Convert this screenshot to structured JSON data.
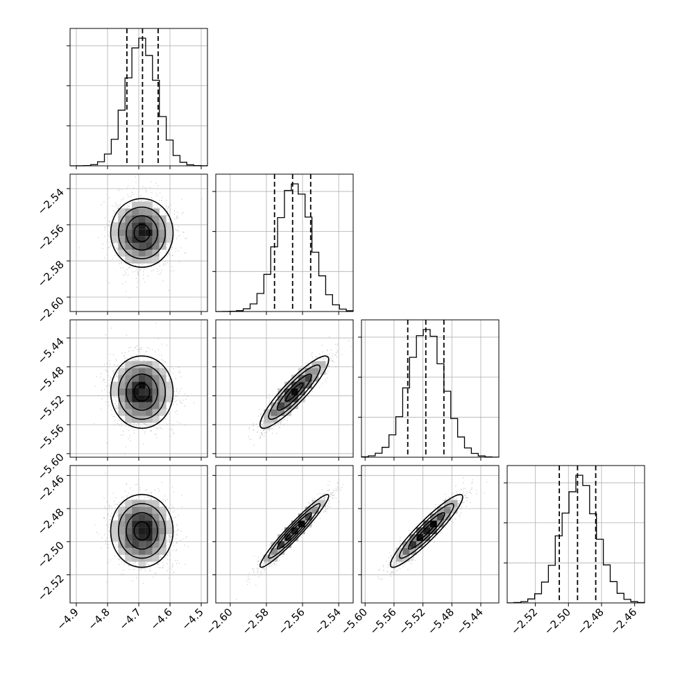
{
  "chart_data": {
    "type": "corner",
    "n_params": 4,
    "params": [
      {
        "mean": -4.69,
        "sigma": 0.05,
        "range": [
          -4.92,
          -4.48
        ],
        "ticks": [
          "−4.9",
          "−4.8",
          "−4.7",
          "−4.6",
          "−4.5"
        ],
        "tick_values": [
          -4.9,
          -4.8,
          -4.7,
          -4.6,
          -4.5
        ],
        "quantiles": [
          -4.738,
          -4.688,
          -4.638
        ]
      },
      {
        "mean": -2.5645,
        "sigma": 0.0095,
        "range": [
          -2.608,
          -2.532
        ],
        "ticks": [
          "−2.60",
          "−2.58",
          "−2.56",
          "−2.54"
        ],
        "tick_values": [
          -2.6,
          -2.58,
          -2.56,
          -2.54
        ],
        "quantiles": [
          -2.5755,
          -2.5655,
          -2.5555
        ]
      },
      {
        "mean": -5.515,
        "sigma": 0.025,
        "range": [
          -5.605,
          -5.415
        ],
        "ticks": [
          "−5.60",
          "−5.56",
          "−5.52",
          "−5.48",
          "−5.44"
        ],
        "tick_values": [
          -5.6,
          -5.56,
          -5.52,
          -5.48,
          -5.44
        ],
        "quantiles": [
          -5.541,
          -5.516,
          -5.491
        ]
      },
      {
        "mean": -2.4935,
        "sigma": 0.011,
        "range": [
          -2.537,
          -2.454
        ],
        "ticks": [
          "−2.52",
          "−2.50",
          "−2.48",
          "−2.46"
        ],
        "tick_values": [
          -2.52,
          -2.5,
          -2.48,
          -2.46
        ],
        "quantiles": [
          -2.5055,
          -2.4945,
          -2.4835
        ]
      }
    ],
    "correlations": [
      [
        0,
        1,
        0.0
      ],
      [
        0,
        2,
        0.0
      ],
      [
        0,
        3,
        0.0
      ],
      [
        1,
        2,
        0.9
      ],
      [
        1,
        3,
        0.96
      ],
      [
        2,
        3,
        0.93
      ]
    ],
    "levels_sigma": [
      0.5,
      1.0,
      1.5,
      2.0
    ],
    "grid": true,
    "colors": {
      "axes": "#000000",
      "points": "#9a9a9a",
      "grid": "#b0b0b0"
    }
  }
}
